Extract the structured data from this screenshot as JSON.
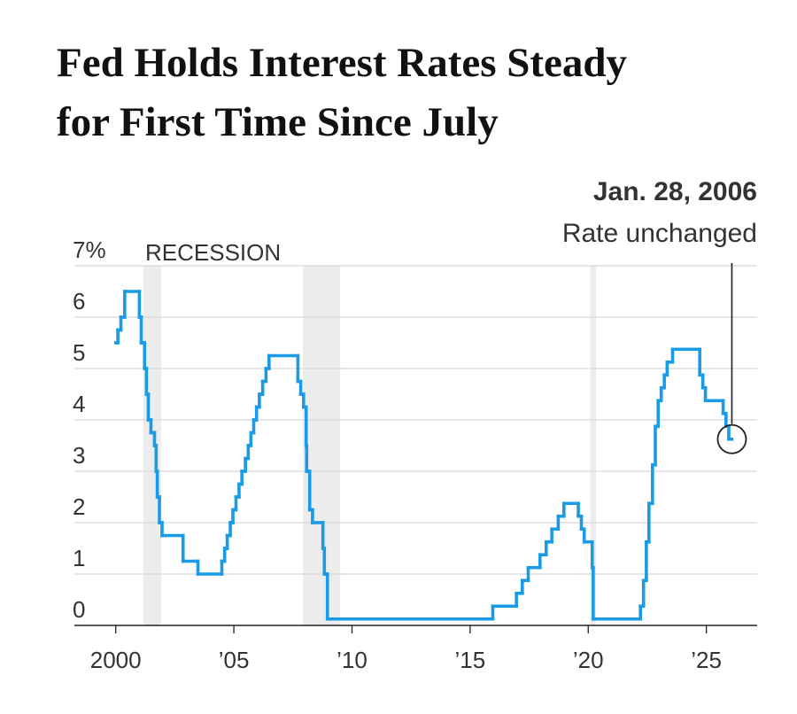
{
  "chart_data": {
    "type": "line",
    "step": true,
    "title": [
      "Fed Holds Interest Rates Steady",
      "for First Time Since July"
    ],
    "annotation": {
      "date": "Jan. 28, 2006",
      "text": "Rate unchanged"
    },
    "recession_label": "RECESSION",
    "recessions": [
      [
        2001.17,
        2001.92
      ],
      [
        2007.92,
        2009.5
      ],
      [
        2020.08,
        2020.33
      ]
    ],
    "color": "#1a9be6",
    "x": [
      2000.0,
      2000.09,
      2000.22,
      2000.38,
      2001.0,
      2001.08,
      2001.22,
      2001.3,
      2001.38,
      2001.49,
      2001.64,
      2001.71,
      2001.76,
      2001.85,
      2001.96,
      2002.85,
      2003.48,
      2004.49,
      2004.61,
      2004.72,
      2004.85,
      2004.96,
      2005.09,
      2005.22,
      2005.34,
      2005.49,
      2005.61,
      2005.72,
      2005.84,
      2005.96,
      2006.08,
      2006.22,
      2006.36,
      2006.49,
      2007.71,
      2007.83,
      2007.95,
      2008.06,
      2008.08,
      2008.21,
      2008.33,
      2008.77,
      2008.83,
      2008.96,
      2015.96,
      2016.96,
      2017.21,
      2017.46,
      2017.96,
      2018.22,
      2018.46,
      2018.73,
      2018.97,
      2019.58,
      2019.71,
      2019.83,
      2020.17,
      2020.21,
      2022.21,
      2022.34,
      2022.46,
      2022.57,
      2022.72,
      2022.84,
      2022.96,
      2023.09,
      2023.22,
      2023.34,
      2023.57,
      2024.72,
      2024.85,
      2024.96,
      2025.71,
      2025.83,
      2025.95,
      2026.08
    ],
    "values": [
      5.5,
      5.75,
      6.0,
      6.5,
      6.0,
      5.5,
      5.0,
      4.5,
      4.0,
      3.75,
      3.5,
      3.0,
      2.5,
      2.0,
      1.75,
      1.25,
      1.0,
      1.25,
      1.5,
      1.75,
      2.0,
      2.25,
      2.5,
      2.75,
      3.0,
      3.25,
      3.5,
      3.75,
      4.0,
      4.25,
      4.5,
      4.75,
      5.0,
      5.25,
      4.75,
      4.5,
      4.25,
      3.5,
      3.0,
      2.25,
      2.0,
      1.5,
      1.0,
      0.125,
      0.375,
      0.625,
      0.875,
      1.125,
      1.375,
      1.625,
      1.875,
      2.125,
      2.375,
      2.125,
      1.875,
      1.625,
      1.125,
      0.125,
      0.375,
      0.875,
      1.625,
      2.375,
      3.125,
      3.875,
      4.375,
      4.625,
      4.875,
      5.125,
      5.375,
      4.875,
      4.625,
      4.375,
      4.125,
      3.875,
      3.625,
      3.625
    ],
    "xlim": [
      1998.25,
      2027.15
    ],
    "ylim": [
      0,
      7
    ],
    "yticks": [
      0,
      1,
      2,
      3,
      4,
      5,
      6,
      {
        "value": 7,
        "label": "7%"
      }
    ],
    "xticks": [
      {
        "value": 2000,
        "label": "2000"
      },
      {
        "value": 2005,
        "label": "’05"
      },
      {
        "value": 2010,
        "label": "’10"
      },
      {
        "value": 2015,
        "label": "’15"
      },
      {
        "value": 2020,
        "label": "’20"
      },
      {
        "value": 2025,
        "label": "’25"
      }
    ],
    "grid": true
  }
}
